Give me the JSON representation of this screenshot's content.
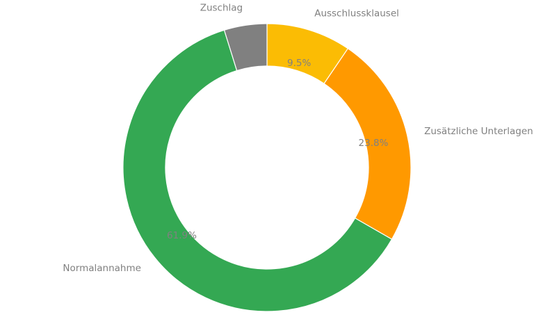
{
  "chart_data": {
    "type": "pie",
    "donut": true,
    "categories": [
      "Ausschlussklausel",
      "Zusätzliche Unterlagen",
      "Normalannahme",
      "Zuschlag"
    ],
    "values": [
      9.5,
      23.8,
      61.9,
      4.8
    ],
    "value_labels": [
      "9.5%",
      "23.8%",
      "61.9%",
      "4.8%"
    ],
    "colors": [
      "#fbbc04",
      "#ff9900",
      "#34a853",
      "#808080"
    ],
    "start": "top",
    "direction": "clockwise",
    "legend": "none"
  }
}
